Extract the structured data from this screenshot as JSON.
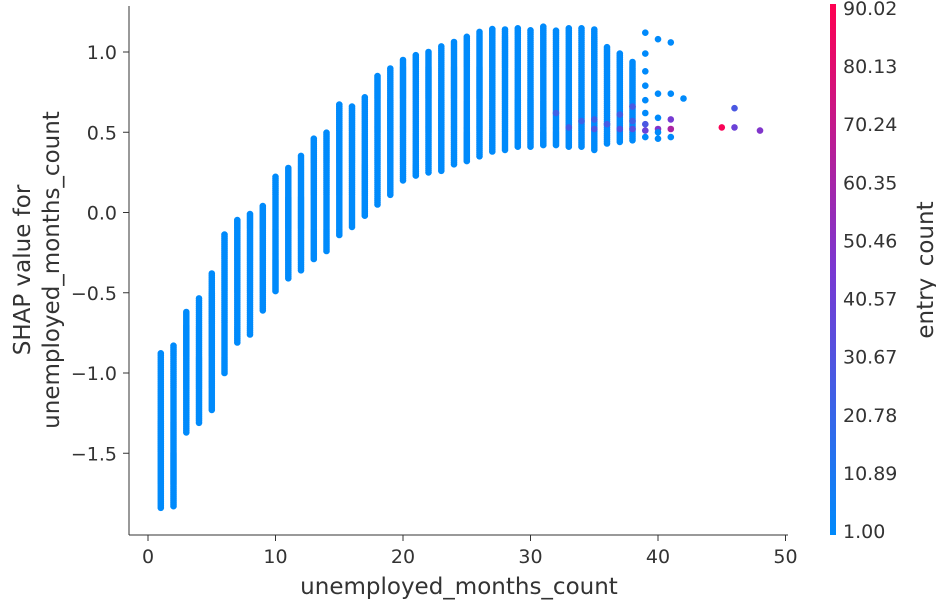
{
  "chart_data": {
    "type": "scatter",
    "xlabel": "unemployed_months_count",
    "ylabel_lines": [
      "SHAP value for",
      "unemployed_months_count"
    ],
    "xlim": [
      -1,
      50
    ],
    "ylim": [
      -1.95,
      1.32
    ],
    "x_ticks": [
      0,
      10,
      20,
      30,
      40,
      50
    ],
    "x_tick_labels": [
      "0",
      "10",
      "20",
      "30",
      "40",
      "50"
    ],
    "y_ticks": [
      1.0,
      0.5,
      0.0,
      -0.5,
      -1.0,
      -1.5
    ],
    "y_tick_labels": [
      "1.0",
      "0.5",
      "0.0",
      "−0.5",
      "−1.0",
      "−1.5"
    ],
    "color_feature": "entry_count",
    "colorbar_range": [
      1.0,
      90.02
    ],
    "colorbar_ticks": [
      90.02,
      80.13,
      70.24,
      60.35,
      50.46,
      40.57,
      30.67,
      20.78,
      10.89,
      1.0
    ],
    "colorbar_tick_labels": [
      "90.02",
      "80.13",
      "70.24",
      "60.35",
      "50.46",
      "40.57",
      "30.67",
      "20.78",
      "10.89",
      "1.00"
    ],
    "colormap": [
      "#008afb",
      "#7a38d2",
      "#ff0051"
    ],
    "grid": false,
    "legend": "colorbar-right",
    "columns": [
      {
        "x": 1,
        "ymin": -1.84,
        "ymax": -0.87,
        "c": 1
      },
      {
        "x": 2,
        "ymin": -1.83,
        "ymax": -0.82,
        "c": 1
      },
      {
        "x": 3,
        "ymin": -1.37,
        "ymax": -0.61,
        "c": 1
      },
      {
        "x": 4,
        "ymin": -1.31,
        "ymax": -0.53,
        "c": 1
      },
      {
        "x": 5,
        "ymin": -1.23,
        "ymax": -0.37,
        "c": 1
      },
      {
        "x": 6,
        "ymin": -1.0,
        "ymax": -0.13,
        "c": 1
      },
      {
        "x": 7,
        "ymin": -0.81,
        "ymax": -0.04,
        "c": 1
      },
      {
        "x": 8,
        "ymin": -0.76,
        "ymax": -0.01,
        "c": 1
      },
      {
        "x": 9,
        "ymin": -0.61,
        "ymax": 0.04,
        "c": 1
      },
      {
        "x": 10,
        "ymin": -0.49,
        "ymax": 0.23,
        "c": 1
      },
      {
        "x": 11,
        "ymin": -0.41,
        "ymax": 0.28,
        "c": 1
      },
      {
        "x": 12,
        "ymin": -0.36,
        "ymax": 0.36,
        "c": 1
      },
      {
        "x": 13,
        "ymin": -0.29,
        "ymax": 0.47,
        "c": 1
      },
      {
        "x": 14,
        "ymin": -0.24,
        "ymax": 0.5,
        "c": 1
      },
      {
        "x": 15,
        "ymin": -0.14,
        "ymax": 0.68,
        "c": 1
      },
      {
        "x": 16,
        "ymin": -0.09,
        "ymax": 0.67,
        "c": 1
      },
      {
        "x": 17,
        "ymin": -0.02,
        "ymax": 0.72,
        "c": 1
      },
      {
        "x": 18,
        "ymin": 0.05,
        "ymax": 0.86,
        "c": 1
      },
      {
        "x": 19,
        "ymin": 0.11,
        "ymax": 0.9,
        "c": 1
      },
      {
        "x": 20,
        "ymin": 0.2,
        "ymax": 0.96,
        "c": 1
      },
      {
        "x": 21,
        "ymin": 0.23,
        "ymax": 0.98,
        "c": 1
      },
      {
        "x": 22,
        "ymin": 0.25,
        "ymax": 1.0,
        "c": 1
      },
      {
        "x": 23,
        "ymin": 0.26,
        "ymax": 1.04,
        "c": 1
      },
      {
        "x": 24,
        "ymin": 0.3,
        "ymax": 1.07,
        "c": 1
      },
      {
        "x": 25,
        "ymin": 0.32,
        "ymax": 1.1,
        "c": 1
      },
      {
        "x": 26,
        "ymin": 0.35,
        "ymax": 1.13,
        "c": 1
      },
      {
        "x": 27,
        "ymin": 0.38,
        "ymax": 1.15,
        "c": 1
      },
      {
        "x": 28,
        "ymin": 0.39,
        "ymax": 1.14,
        "c": 1
      },
      {
        "x": 29,
        "ymin": 0.41,
        "ymax": 1.15,
        "c": 1
      },
      {
        "x": 30,
        "ymin": 0.41,
        "ymax": 1.14,
        "c": 1
      },
      {
        "x": 31,
        "ymin": 0.42,
        "ymax": 1.16,
        "c": 1
      },
      {
        "x": 32,
        "ymin": 0.42,
        "ymax": 1.14,
        "c": 1
      },
      {
        "x": 33,
        "ymin": 0.41,
        "ymax": 1.15,
        "c": 1
      },
      {
        "x": 34,
        "ymin": 0.41,
        "ymax": 1.15,
        "c": 1
      },
      {
        "x": 35,
        "ymin": 0.39,
        "ymax": 1.14,
        "c": 1
      },
      {
        "x": 36,
        "ymin": 0.43,
        "ymax": 1.04,
        "c": 1
      },
      {
        "x": 37,
        "ymin": 0.44,
        "ymax": 0.99,
        "c": 1
      },
      {
        "x": 38,
        "ymin": 0.45,
        "ymax": 0.94,
        "c": 1
      }
    ],
    "points": [
      {
        "x": 32,
        "y": 0.62,
        "c": 24
      },
      {
        "x": 33,
        "y": 0.53,
        "c": 26
      },
      {
        "x": 34,
        "y": 0.57,
        "c": 22
      },
      {
        "x": 35,
        "y": 0.52,
        "c": 28
      },
      {
        "x": 35,
        "y": 0.58,
        "c": 24
      },
      {
        "x": 36,
        "y": 0.55,
        "c": 26
      },
      {
        "x": 37,
        "y": 0.61,
        "c": 25
      },
      {
        "x": 37,
        "y": 0.52,
        "c": 30
      },
      {
        "x": 38,
        "y": 0.66,
        "c": 27
      },
      {
        "x": 38,
        "y": 0.52,
        "c": 33
      },
      {
        "x": 38,
        "y": 0.57,
        "c": 24
      },
      {
        "x": 39,
        "y": 1.12,
        "c": 1
      },
      {
        "x": 39,
        "y": 0.99,
        "c": 1
      },
      {
        "x": 39,
        "y": 0.88,
        "c": 1
      },
      {
        "x": 39,
        "y": 0.79,
        "c": 1
      },
      {
        "x": 39,
        "y": 0.7,
        "c": 1
      },
      {
        "x": 39,
        "y": 0.62,
        "c": 1
      },
      {
        "x": 39,
        "y": 0.55,
        "c": 28
      },
      {
        "x": 39,
        "y": 0.51,
        "c": 40
      },
      {
        "x": 39,
        "y": 0.47,
        "c": 1
      },
      {
        "x": 40,
        "y": 1.08,
        "c": 1
      },
      {
        "x": 40,
        "y": 0.74,
        "c": 1
      },
      {
        "x": 40,
        "y": 0.59,
        "c": 1
      },
      {
        "x": 40,
        "y": 0.52,
        "c": 48
      },
      {
        "x": 40,
        "y": 0.5,
        "c": 1
      },
      {
        "x": 40,
        "y": 0.46,
        "c": 1
      },
      {
        "x": 41,
        "y": 1.06,
        "c": 1
      },
      {
        "x": 41,
        "y": 0.74,
        "c": 1
      },
      {
        "x": 41,
        "y": 0.58,
        "c": 44
      },
      {
        "x": 41,
        "y": 0.52,
        "c": 62
      },
      {
        "x": 41,
        "y": 0.47,
        "c": 1
      },
      {
        "x": 42,
        "y": 0.71,
        "c": 1
      },
      {
        "x": 45,
        "y": 0.53,
        "c": 88
      },
      {
        "x": 46,
        "y": 0.65,
        "c": 28
      },
      {
        "x": 46,
        "y": 0.53,
        "c": 40
      },
      {
        "x": 48,
        "y": 0.51,
        "c": 48
      }
    ]
  }
}
